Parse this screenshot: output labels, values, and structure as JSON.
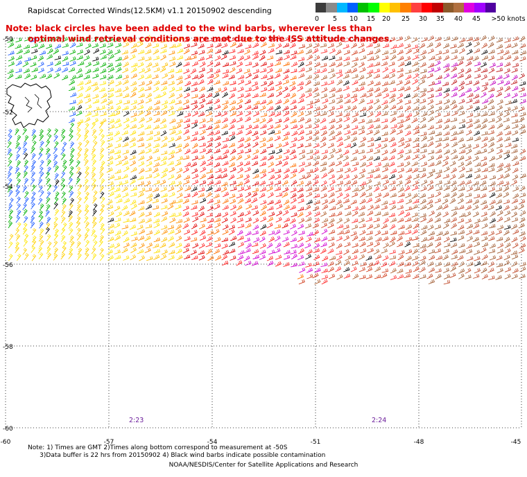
{
  "title": "Rapidscat Corrected Winds(12.5KM) v1.1 20150902 descending",
  "note_line1": "Note: black circles have been added to the wind barbs, wherever less than",
  "note_line2": "optimal wind retrieval conditions are met due to the ISS attitude changes.",
  "legend": {
    "unit_label": ">50 knots",
    "ticks": [
      "0",
      "5",
      "10",
      "15",
      "20",
      "25",
      "30",
      "35",
      "40",
      "45",
      ">50 knots"
    ],
    "colors": [
      "#3c3c3c",
      "#8a8a8a",
      "#00b8ff",
      "#0060ff",
      "#00c000",
      "#00ff00",
      "#ffff00",
      "#ffc000",
      "#ff8000",
      "#ff4040",
      "#ff0000",
      "#c00000",
      "#8b5a2b",
      "#b07040",
      "#e000e0",
      "#a000ff",
      "#5000a0"
    ]
  },
  "lat_labels": [
    "-50",
    "-52",
    "-54",
    "-56",
    "-58",
    "-60"
  ],
  "lon_labels": [
    "-60",
    "-57",
    "-54",
    "-51",
    "-48",
    "-45"
  ],
  "time_labels": [
    "2:23",
    "2:24"
  ],
  "footnote_line1": "Note: 1) Times are GMT 2)Times along bottom correspond to measurement at -50S",
  "footnote_line2": "      3)Data buffer is 22 hrs from 20150902 4) Black wind barbs indicate possible contamination",
  "credit": "NOAA/NESDIS/Center for Satellite Applications and Research"
}
